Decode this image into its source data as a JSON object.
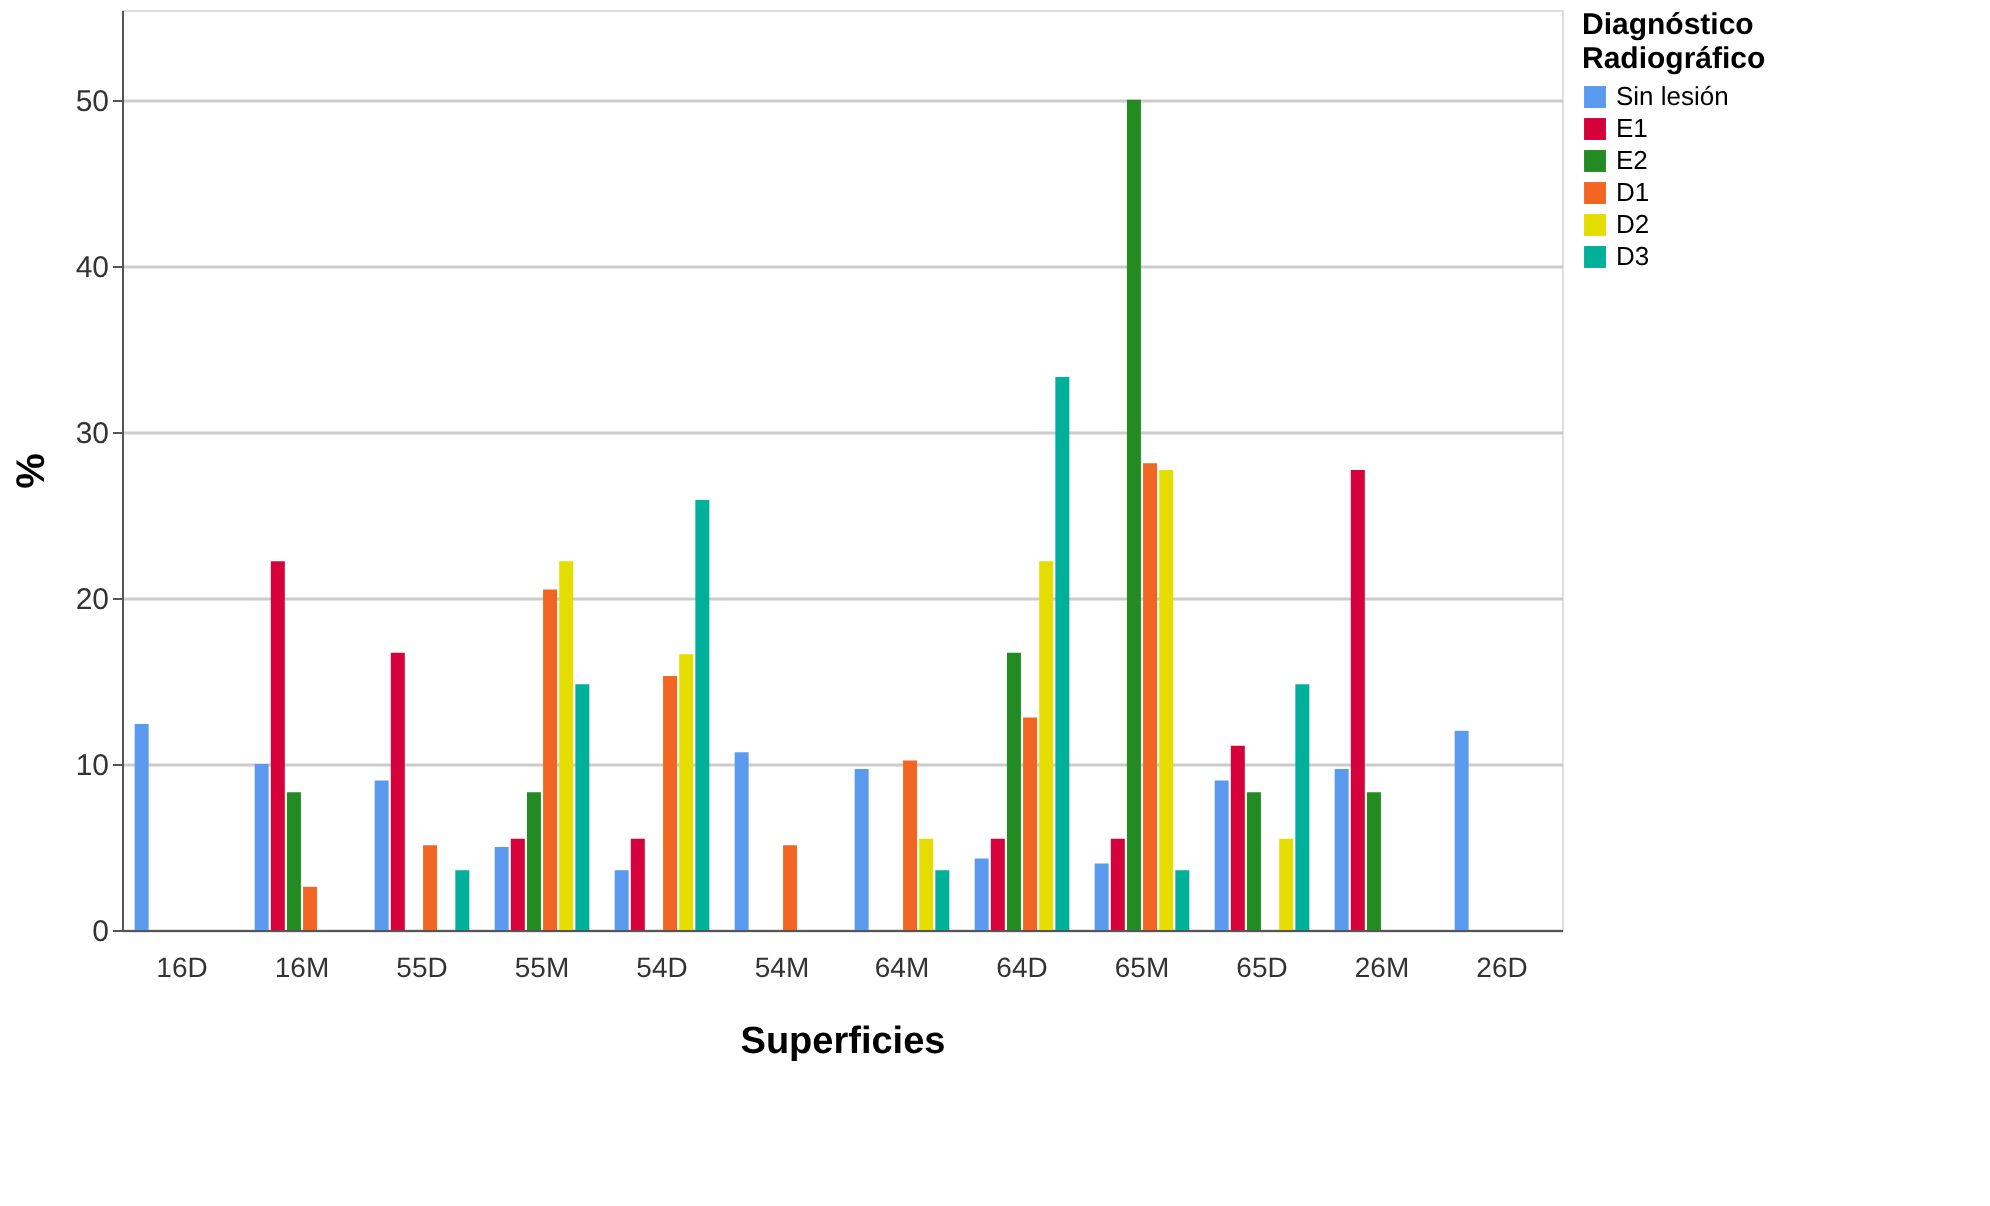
{
  "chart_data": {
    "type": "bar",
    "xlabel": "Superficies",
    "ylabel": "%",
    "legend_title": "Diagnóstico Radiográfico",
    "categories": [
      "16D",
      "16M",
      "55D",
      "55M",
      "54D",
      "54M",
      "64M",
      "64D",
      "65M",
      "65D",
      "26M",
      "26D"
    ],
    "series": [
      {
        "name": "Sin lesión",
        "color": "#5b9bef",
        "values": [
          12.4,
          10.0,
          9.0,
          5.0,
          3.6,
          10.7,
          9.7,
          4.3,
          4.0,
          9.0,
          9.7,
          12.0
        ]
      },
      {
        "name": "E1",
        "color": "#d6003a",
        "values": [
          null,
          22.2,
          16.7,
          5.5,
          5.5,
          null,
          null,
          5.5,
          5.5,
          11.1,
          27.7,
          null
        ]
      },
      {
        "name": "E2",
        "color": "#228b22",
        "values": [
          null,
          8.3,
          null,
          8.3,
          null,
          null,
          null,
          16.7,
          50.0,
          8.3,
          8.3,
          null
        ]
      },
      {
        "name": "D1",
        "color": "#f26522",
        "values": [
          null,
          2.6,
          5.1,
          20.5,
          15.3,
          5.1,
          10.2,
          12.8,
          28.1,
          null,
          null,
          null
        ]
      },
      {
        "name": "D2",
        "color": "#e5dc00",
        "values": [
          null,
          null,
          null,
          22.2,
          16.6,
          null,
          5.5,
          22.2,
          27.7,
          5.5,
          null,
          null
        ]
      },
      {
        "name": "D3",
        "color": "#00b09b",
        "values": [
          null,
          null,
          3.6,
          14.8,
          25.9,
          null,
          3.6,
          33.3,
          3.6,
          14.8,
          null,
          null
        ]
      }
    ],
    "ylim": [
      0,
      55.4
    ],
    "yticks": [
      0,
      10,
      20,
      30,
      40,
      50
    ],
    "grid": "y",
    "legend": "top right"
  }
}
